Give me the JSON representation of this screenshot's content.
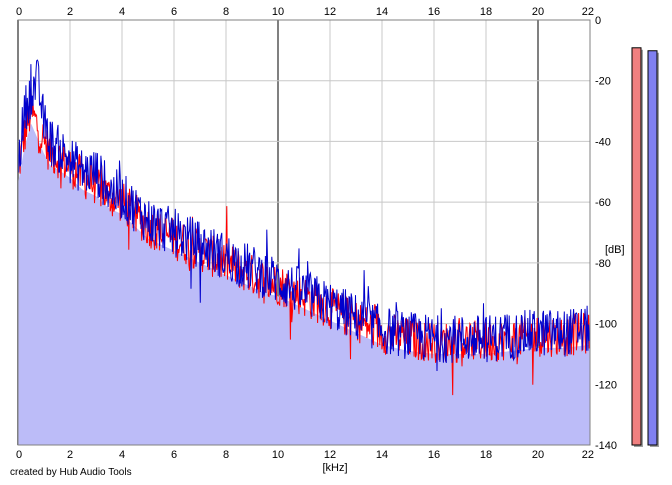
{
  "footer": {
    "credit": "created by Hub Audio Tools"
  },
  "chart_data": {
    "type": "line",
    "title": "",
    "xlabel": "[kHz]",
    "ylabel": "[dB]",
    "xlim": [
      0,
      22
    ],
    "ylim": [
      -140,
      0
    ],
    "x_ticks": [
      0,
      2,
      4,
      6,
      8,
      10,
      12,
      14,
      16,
      18,
      20,
      22
    ],
    "x_tick_labels": [
      "0",
      "2",
      "4",
      "6",
      "8",
      "10",
      "12",
      "14",
      "16",
      "18",
      "20",
      "22"
    ],
    "y_ticks": [
      0,
      -20,
      -40,
      -60,
      -80,
      -100,
      -120,
      -140
    ],
    "y_tick_labels": [
      "0",
      "-20",
      "-40",
      "-60",
      "-80",
      "-100",
      "-120",
      "-140"
    ],
    "grid": true,
    "legend": "none",
    "colors": {
      "left": "#ff0000",
      "right": "#0000cc",
      "fill": "#bcbcf8",
      "grid_major": "#808080",
      "grid_minor": "#c8c8c8",
      "meter_left": "#f08080",
      "meter_right": "#8080f0"
    },
    "series": [
      {
        "color": "#ff0000",
        "x": [
          0,
          0.25,
          0.5,
          0.75,
          1,
          1.25,
          1.5,
          2,
          2.5,
          3,
          3.5,
          4,
          4.5,
          5,
          5.5,
          6,
          6.5,
          7,
          7.5,
          8,
          8.5,
          9,
          9.5,
          10,
          10.5,
          11,
          11.5,
          12,
          13,
          14,
          15,
          16,
          17,
          18,
          19,
          20,
          21,
          22
        ],
        "y": [
          -50,
          -38,
          -30,
          -35,
          -40,
          -44,
          -45,
          -48,
          -52,
          -54,
          -58,
          -60,
          -64,
          -68,
          -70,
          -72,
          -74,
          -76,
          -78,
          -80,
          -82,
          -84,
          -86,
          -87,
          -89,
          -91,
          -93,
          -95,
          -99,
          -103,
          -105,
          -106,
          -106,
          -106,
          -105,
          -104,
          -104,
          -103
        ]
      },
      {
        "color": "#0000cc",
        "x": [
          0,
          0.25,
          0.5,
          0.75,
          1,
          1.25,
          1.5,
          2,
          2.5,
          3,
          3.5,
          4,
          4.5,
          5,
          5.5,
          6,
          6.5,
          7,
          7.5,
          8,
          8.5,
          9,
          9.5,
          10,
          10.5,
          11,
          11.5,
          12,
          13,
          14,
          15,
          16,
          17,
          18,
          19,
          20,
          21,
          22
        ],
        "y": [
          -48,
          -30,
          -24,
          -20,
          -34,
          -40,
          -42,
          -46,
          -50,
          -50,
          -56,
          -58,
          -62,
          -66,
          -68,
          -70,
          -72,
          -74,
          -76,
          -78,
          -80,
          -82,
          -84,
          -86,
          -88,
          -90,
          -92,
          -94,
          -98,
          -102,
          -104,
          -105,
          -105,
          -105,
          -104,
          -103,
          -103,
          -102
        ]
      }
    ],
    "level_meters": [
      {
        "channel": "left",
        "peak_db": -6
      },
      {
        "channel": "right",
        "peak_db": -7
      }
    ]
  }
}
